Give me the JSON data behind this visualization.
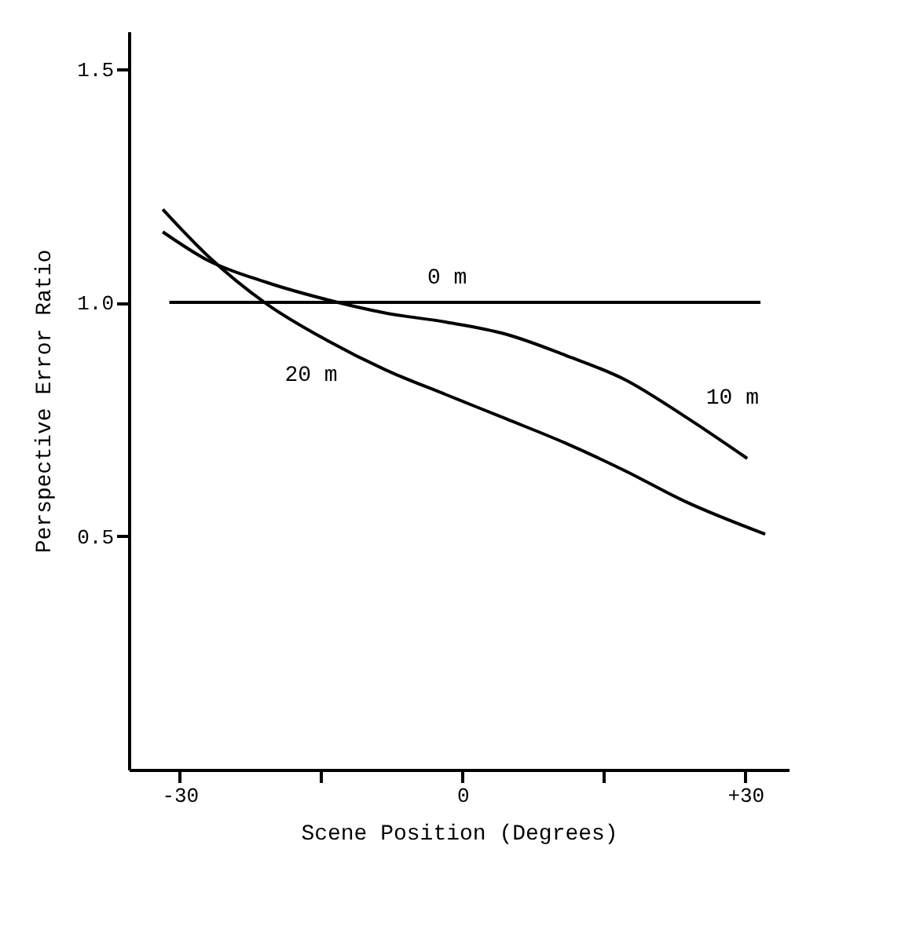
{
  "chart_data": {
    "type": "line",
    "xlabel": "Scene Position (Degrees)",
    "ylabel": "Perspective Error Ratio",
    "xlim": [
      -35.4,
      34.6
    ],
    "ylim": [
      0,
      1.58
    ],
    "xticks": [
      -30,
      {
        "value": -15,
        "label": null
      },
      0,
      {
        "value": 15,
        "label": null
      },
      {
        "value": 30,
        "label": "+30"
      }
    ],
    "yticks": [
      {
        "value": 0.5,
        "label": "0.5"
      },
      {
        "value": 1.0,
        "label": "1.0"
      },
      {
        "value": 1.5,
        "label": "1.5"
      }
    ],
    "grid": false,
    "legend": false,
    "marker": "none",
    "line_style": "solid",
    "series": [
      {
        "name": "0 m",
        "color": "#000000",
        "x": [
          -31.1,
          31.6
        ],
        "values": [
          1.0,
          1.0
        ]
      },
      {
        "name": "10 m",
        "color": "#000000",
        "x": [
          -31.8,
          -27.1,
          -20.8,
          -14.4,
          -8.1,
          -1.8,
          4.6,
          10.9,
          17.2,
          23.5,
          30.2
        ],
        "values": [
          1.151,
          1.091,
          1.043,
          1.006,
          0.977,
          0.958,
          0.932,
          0.887,
          0.835,
          0.757,
          0.666
        ]
      },
      {
        "name": "20 m",
        "color": "#000000",
        "x": [
          -31.8,
          -27.1,
          -20.8,
          -14.4,
          -8.1,
          -1.8,
          4.6,
          10.9,
          17.2,
          23.5,
          32.1
        ],
        "values": [
          1.199,
          1.101,
          0.997,
          0.919,
          0.855,
          0.803,
          0.751,
          0.699,
          0.64,
          0.575,
          0.504
        ]
      }
    ]
  }
}
